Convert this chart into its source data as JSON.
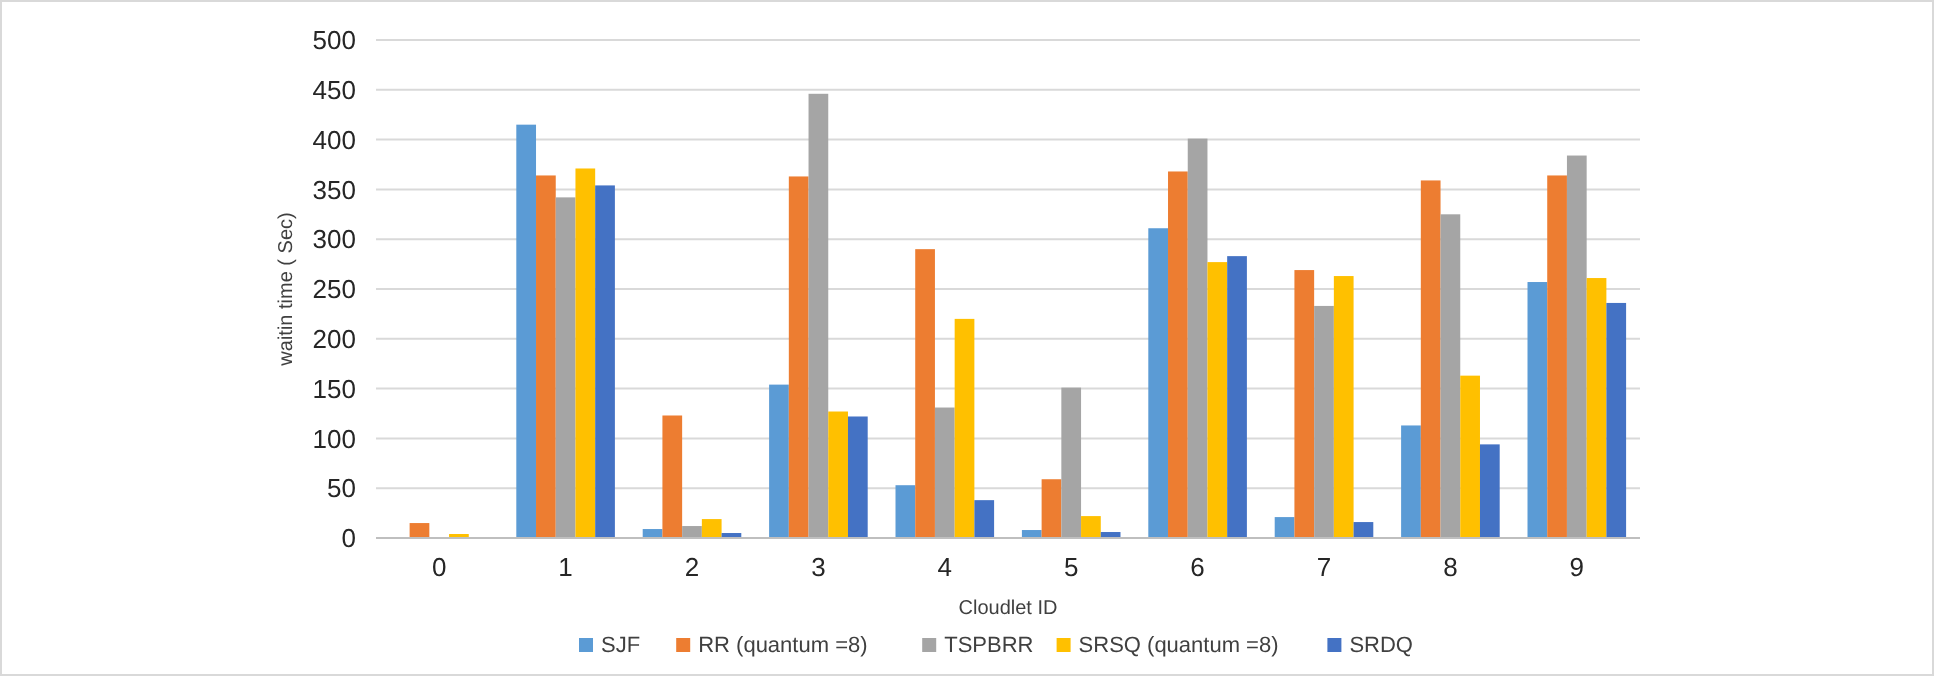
{
  "chart_data": {
    "type": "bar",
    "xlabel": "Cloudlet ID",
    "ylabel": "waitin time ( Sec)",
    "categories": [
      "0",
      "1",
      "2",
      "3",
      "4",
      "5",
      "6",
      "7",
      "8",
      "9"
    ],
    "series": [
      {
        "name": "SJF",
        "color": "#5b9bd5",
        "values": [
          0,
          415,
          9,
          154,
          53,
          8,
          311,
          21,
          113,
          257
        ]
      },
      {
        "name": "RR (quantum =8)",
        "color": "#ed7d31",
        "values": [
          15,
          364,
          123,
          363,
          290,
          59,
          368,
          269,
          359,
          364
        ]
      },
      {
        "name": "TSPBRR",
        "color": "#a5a5a5",
        "values": [
          0,
          342,
          12,
          446,
          131,
          151,
          401,
          233,
          325,
          384
        ]
      },
      {
        "name": "SRSQ (quantum =8)",
        "color": "#ffc000",
        "values": [
          4,
          371,
          19,
          127,
          220,
          22,
          277,
          263,
          163,
          261
        ]
      },
      {
        "name": "SRDQ",
        "color": "#4472c4",
        "values": [
          0,
          354,
          5,
          122,
          38,
          6,
          283,
          16,
          94,
          236
        ]
      }
    ],
    "ylim": [
      0,
      500
    ],
    "yticks": [
      0,
      50,
      100,
      150,
      200,
      250,
      300,
      350,
      400,
      450,
      500
    ],
    "grid": "y",
    "legend": "bottom"
  }
}
